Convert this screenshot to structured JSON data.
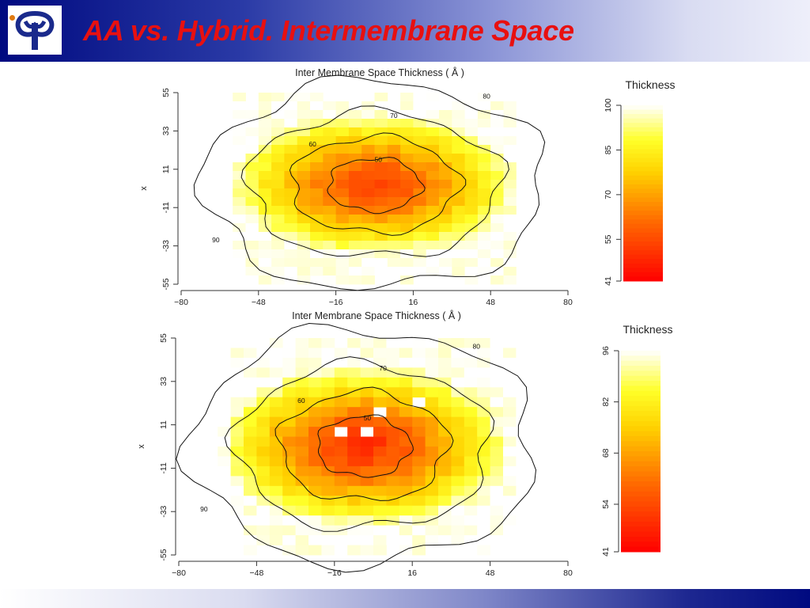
{
  "slide": {
    "title": "AA vs. Hybrid.  Intermembrane Space",
    "colors": {
      "title": "#e81010",
      "bar_dark": "#000a80"
    },
    "logo_icon": "university-logo-icon"
  },
  "chart_data": [
    {
      "type": "heatmap",
      "title": "Inter Membrane Space Thickness ( Å )",
      "xlabel": "",
      "ylabel": "x",
      "x_ticks": [
        "-80",
        "-48",
        "-16",
        "16",
        "48",
        "80"
      ],
      "y_ticks": [
        "55",
        "33",
        "11",
        "-11",
        "-33",
        "-55"
      ],
      "xlim": [
        -80,
        80
      ],
      "ylim": [
        -55,
        55
      ],
      "grid_cells": [
        30,
        22
      ],
      "center": [
        0,
        2
      ],
      "min_value": 52,
      "max_value": 100,
      "contour_levels": [
        "50",
        "60",
        "70",
        "80",
        "90"
      ],
      "colorbar": {
        "title": "Thickness",
        "ticks": [
          "100",
          "85",
          "70",
          "55",
          "41"
        ],
        "range": [
          41,
          100
        ]
      }
    },
    {
      "type": "heatmap",
      "title": "Inter Membrane Space Thickness ( Å )",
      "xlabel": "",
      "ylabel": "x",
      "x_ticks": [
        "-80",
        "-48",
        "-16",
        "16",
        "48",
        "80"
      ],
      "y_ticks": [
        "55",
        "33",
        "11",
        "-11",
        "-33",
        "-55"
      ],
      "xlim": [
        -80,
        80
      ],
      "ylim": [
        -55,
        55
      ],
      "grid_cells": [
        30,
        22
      ],
      "center": [
        -4,
        0
      ],
      "min_value": 48,
      "max_value": 96,
      "contour_levels": [
        "50",
        "60",
        "70",
        "80",
        "90"
      ],
      "colorbar": {
        "title": "Thickness",
        "ticks": [
          "96",
          "82",
          "68",
          "54",
          "41"
        ],
        "range": [
          41,
          96
        ]
      }
    }
  ]
}
